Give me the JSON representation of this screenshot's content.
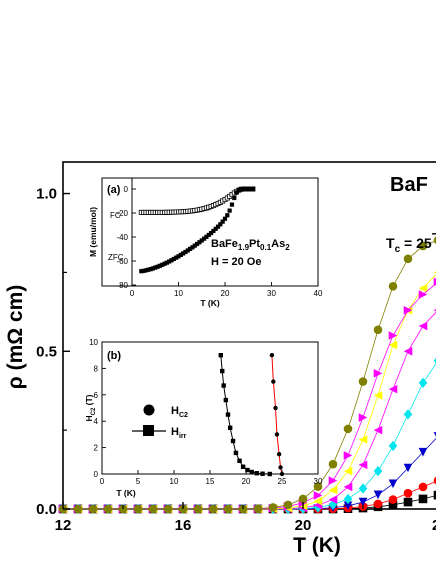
{
  "chart_data": [
    {
      "id": "main",
      "type": "scatter",
      "title": "BaF",
      "subtitle": "Tc = 25",
      "subtitle_main": "T",
      "subtitle_sub": "c",
      "subtitle_rest": " = 25",
      "xlabel": "T (K)",
      "ylabel": "ρ (mΩ cm)",
      "xlim": [
        12,
        25
      ],
      "ylim": [
        0,
        1.1
      ],
      "x_ticks": [
        12,
        16,
        20
      ],
      "x_tick_labels": [
        "12",
        "16",
        "20"
      ],
      "x_tick_partial": "2",
      "y_ticks": [
        0,
        0.5,
        1.0
      ],
      "y_tick_labels": [
        "0.0",
        "0.5",
        "1.0"
      ],
      "series": [
        {
          "marker": "circle",
          "color": "#808000",
          "x": [
            12,
            12.5,
            13,
            13.5,
            14,
            14.5,
            15,
            15.5,
            16,
            16.5,
            17,
            17.5,
            18,
            18.5,
            19,
            19.5,
            20,
            20.5,
            21,
            21.5,
            22,
            22.5,
            23,
            23.5,
            24,
            24.5
          ],
          "y": [
            0,
            0,
            0,
            0,
            0,
            0,
            0,
            0,
            0,
            0,
            0,
            0,
            0,
            0.001,
            0.005,
            0.013,
            0.032,
            0.071,
            0.142,
            0.254,
            0.404,
            0.568,
            0.706,
            0.793,
            0.834,
            0.852
          ]
        },
        {
          "marker": "triangle-right",
          "color": "#ff00ff",
          "x": [
            12,
            12.5,
            13,
            13.5,
            14,
            14.5,
            15,
            15.5,
            16,
            16.5,
            17,
            17.5,
            18,
            18.5,
            19,
            19.5,
            20,
            20.5,
            21,
            21.5,
            22,
            22.5,
            23,
            23.5,
            24,
            24.5
          ],
          "y": [
            0,
            0,
            0,
            0,
            0,
            0,
            0,
            0,
            0,
            0,
            0,
            0,
            0,
            0,
            0.003,
            0.008,
            0.02,
            0.043,
            0.09,
            0.17,
            0.29,
            0.43,
            0.55,
            0.63,
            0.68,
            0.72
          ]
        },
        {
          "marker": "triangle-left",
          "color": "#ffff00",
          "x": [
            12,
            12.5,
            13,
            13.5,
            14,
            14.5,
            15,
            15.5,
            16,
            16.5,
            17,
            17.5,
            18,
            18.5,
            19,
            19.5,
            20,
            20.5,
            21,
            21.5,
            22,
            22.5,
            23,
            23.5,
            24,
            24.5
          ],
          "y": [
            0,
            0,
            0,
            0,
            0,
            0,
            0,
            0,
            0,
            0,
            0,
            0,
            0,
            0,
            0.001,
            0.003,
            0.01,
            0.025,
            0.06,
            0.12,
            0.22,
            0.36,
            0.52,
            0.63,
            0.7,
            0.75
          ]
        },
        {
          "marker": "triangle-left",
          "color": "#ff00ff",
          "x": [
            12,
            12.5,
            13,
            13.5,
            14,
            14.5,
            15,
            15.5,
            16,
            16.5,
            17,
            17.5,
            18,
            18.5,
            19,
            19.5,
            20,
            20.5,
            21,
            21.5,
            22,
            22.5,
            23,
            23.5,
            24,
            24.5
          ],
          "y": [
            0,
            0,
            0,
            0,
            0,
            0,
            0,
            0,
            0,
            0,
            0,
            0,
            0,
            0,
            0,
            0.001,
            0.004,
            0.012,
            0.03,
            0.07,
            0.14,
            0.25,
            0.38,
            0.5,
            0.58,
            0.63
          ]
        },
        {
          "marker": "diamond",
          "color": "#00e5ee",
          "x": [
            12,
            12.5,
            13,
            13.5,
            14,
            14.5,
            15,
            15.5,
            16,
            16.5,
            17,
            17.5,
            18,
            18.5,
            19,
            19.5,
            20,
            20.5,
            21,
            21.5,
            22,
            22.5,
            23,
            23.5,
            24,
            24.5
          ],
          "y": [
            0,
            0,
            0,
            0,
            0,
            0,
            0,
            0,
            0,
            0,
            0,
            0,
            0,
            0,
            0,
            0,
            0.001,
            0.005,
            0.014,
            0.032,
            0.065,
            0.12,
            0.2,
            0.3,
            0.4,
            0.47
          ]
        },
        {
          "marker": "triangle-down",
          "color": "#0000cd",
          "x": [
            12,
            12.5,
            13,
            13.5,
            14,
            14.5,
            15,
            15.5,
            16,
            16.5,
            17,
            17.5,
            18,
            18.5,
            19,
            19.5,
            20,
            20.5,
            21,
            21.5,
            22,
            22.5,
            23,
            23.5,
            24,
            24.5
          ],
          "y": [
            0,
            0,
            0,
            0,
            0,
            0,
            0,
            0,
            0,
            0,
            0,
            0,
            0,
            0,
            0,
            0,
            0,
            0.001,
            0.004,
            0.01,
            0.022,
            0.045,
            0.08,
            0.13,
            0.18,
            0.23
          ]
        },
        {
          "marker": "circle",
          "color": "#ff0000",
          "x": [
            12,
            12.5,
            13,
            13.5,
            14,
            14.5,
            15,
            15.5,
            16,
            16.5,
            17,
            17.5,
            18,
            18.5,
            19,
            19.5,
            20,
            20.5,
            21,
            21.5,
            22,
            22.5,
            23,
            23.5,
            24,
            24.5
          ],
          "y": [
            0,
            0,
            0,
            0,
            0,
            0,
            0,
            0,
            0,
            0,
            0,
            0,
            0,
            0,
            0,
            0,
            0,
            0,
            0.001,
            0.003,
            0.008,
            0.016,
            0.03,
            0.05,
            0.07,
            0.09
          ]
        },
        {
          "marker": "square",
          "color": "#000000",
          "x": [
            12,
            12.5,
            13,
            13.5,
            14,
            14.5,
            15,
            15.5,
            16,
            16.5,
            17,
            17.5,
            18,
            18.5,
            19,
            19.5,
            20,
            20.5,
            21,
            21.5,
            22,
            22.5,
            23,
            23.5,
            24,
            24.5
          ],
          "y": [
            0,
            0,
            0,
            0,
            0,
            0,
            0,
            0,
            0,
            0,
            0,
            0,
            0,
            0,
            0,
            0,
            0,
            0,
            0,
            0.001,
            0.003,
            0.007,
            0.013,
            0.022,
            0.032,
            0.044
          ]
        }
      ],
      "normal_state_guide": {
        "x": [
          24.3,
          25
        ],
        "y": [
          0.872,
          0.876
        ]
      }
    },
    {
      "id": "inset-a",
      "type": "scatter",
      "panel_label": "(a)",
      "xlabel": "T (K)",
      "ylabel": "M (emu/mol)",
      "xlim": [
        0,
        40
      ],
      "ylim": [
        -80,
        5
      ],
      "x_ticks": [
        0,
        10,
        20,
        30,
        40
      ],
      "y_ticks": [
        0,
        -20,
        -40,
        -60,
        -80
      ],
      "annotations": {
        "fc": "FC",
        "zfc": "ZFC",
        "compound": {
          "base1": "BaFe",
          "sub1": "1.9",
          "base2": "Pt",
          "sub2": "0.1",
          "base3": "As",
          "sub3": "2"
        },
        "field": "H = 20 Oe"
      },
      "series": [
        {
          "name": "FC",
          "marker": "open-square",
          "color": "#000000",
          "x": [
            2,
            2.5,
            3,
            3.5,
            4,
            4.5,
            5,
            5.5,
            6,
            6.5,
            7,
            7.5,
            8,
            8.5,
            9,
            9.5,
            10,
            10.5,
            11,
            11.5,
            12,
            12.5,
            13,
            13.5,
            14,
            14.5,
            15,
            15.5,
            16,
            16.5,
            17,
            17.5,
            18,
            18.5,
            19,
            19.5,
            20,
            20.5,
            21,
            21.5,
            22,
            22.5,
            23,
            23.5,
            24,
            24.5,
            25,
            25.5,
            26
          ],
          "y": [
            -19.5,
            -19.5,
            -19.5,
            -19.5,
            -19.5,
            -19.5,
            -19.5,
            -19.5,
            -19.5,
            -19.5,
            -19.5,
            -19.4,
            -19.4,
            -19.3,
            -19.3,
            -19.2,
            -19.1,
            -19.0,
            -18.9,
            -18.8,
            -18.6,
            -18.4,
            -18.2,
            -17.9,
            -17.6,
            -17.2,
            -16.8,
            -16.3,
            -15.8,
            -15.2,
            -14.5,
            -13.8,
            -13.0,
            -12.1,
            -11.1,
            -10.0,
            -8.8,
            -7.5,
            -6.1,
            -4.7,
            -3.3,
            -2.0,
            -0.9,
            -0.2,
            0,
            0,
            0,
            0,
            0
          ]
        },
        {
          "name": "ZFC",
          "marker": "square",
          "color": "#000000",
          "x": [
            2,
            2.5,
            3,
            3.5,
            4,
            4.5,
            5,
            5.5,
            6,
            6.5,
            7,
            7.5,
            8,
            8.5,
            9,
            9.5,
            10,
            10.5,
            11,
            11.5,
            12,
            12.5,
            13,
            13.5,
            14,
            14.5,
            15,
            15.5,
            16,
            16.5,
            17,
            17.5,
            18,
            18.5,
            19,
            19.5,
            20,
            20.5,
            21,
            21.5,
            22,
            22.5,
            23,
            23.5,
            24,
            24.5,
            25,
            25.5,
            26
          ],
          "y": [
            -68.5,
            -68.2,
            -67.8,
            -67.3,
            -66.8,
            -66.2,
            -65.5,
            -64.8,
            -64.0,
            -63.2,
            -62.3,
            -61.4,
            -60.4,
            -59.4,
            -58.3,
            -57.2,
            -56.1,
            -54.9,
            -53.7,
            -52.5,
            -51.2,
            -49.9,
            -48.6,
            -47.2,
            -45.8,
            -44.4,
            -42.9,
            -41.4,
            -39.9,
            -38.3,
            -36.7,
            -35.0,
            -33.2,
            -31.4,
            -29.4,
            -27.2,
            -24.8,
            -21.9,
            -18.0,
            -13.0,
            -7.5,
            -3.0,
            -0.8,
            -0.1,
            0,
            0,
            0,
            0,
            0
          ]
        }
      ]
    },
    {
      "id": "inset-b",
      "type": "line",
      "panel_label": "(b)",
      "xlabel": "T (K)",
      "ylabel": "H_C2 (T)",
      "ylabel_main": "H",
      "ylabel_sub": "C2",
      "ylabel_rest": " (T)",
      "xlim": [
        0,
        30
      ],
      "ylim": [
        0,
        10
      ],
      "x_ticks": [
        0,
        5,
        10,
        15,
        20,
        25,
        30
      ],
      "y_ticks": [
        0,
        2,
        4,
        6,
        8,
        10
      ],
      "legend": [
        {
          "marker": "circle",
          "main": "H",
          "sub": "C2"
        },
        {
          "marker": "square-line",
          "main": "H",
          "sub": "irr"
        }
      ],
      "series": [
        {
          "name": "Hc2",
          "marker": "circle",
          "color": "#000000",
          "line_color": "#ff0000",
          "x": [
            23.6,
            23.8,
            24.1,
            24.3,
            24.6,
            24.8,
            25.0
          ],
          "y": [
            9.0,
            7.0,
            5.0,
            3.0,
            1.5,
            0.5,
            0.0
          ]
        },
        {
          "name": "Hirr",
          "marker": "square",
          "color": "#000000",
          "line_color": "#000000",
          "x": [
            16.5,
            16.7,
            16.9,
            17.2,
            17.5,
            17.8,
            18.2,
            18.6,
            19.1,
            19.6,
            20.2,
            20.8,
            21.5,
            22.3,
            23.3
          ],
          "y": [
            9.0,
            7.8,
            6.7,
            5.6,
            4.5,
            3.5,
            2.5,
            1.6,
            1.0,
            0.55,
            0.3,
            0.15,
            0.06,
            0.02,
            0.0
          ]
        }
      ]
    }
  ]
}
